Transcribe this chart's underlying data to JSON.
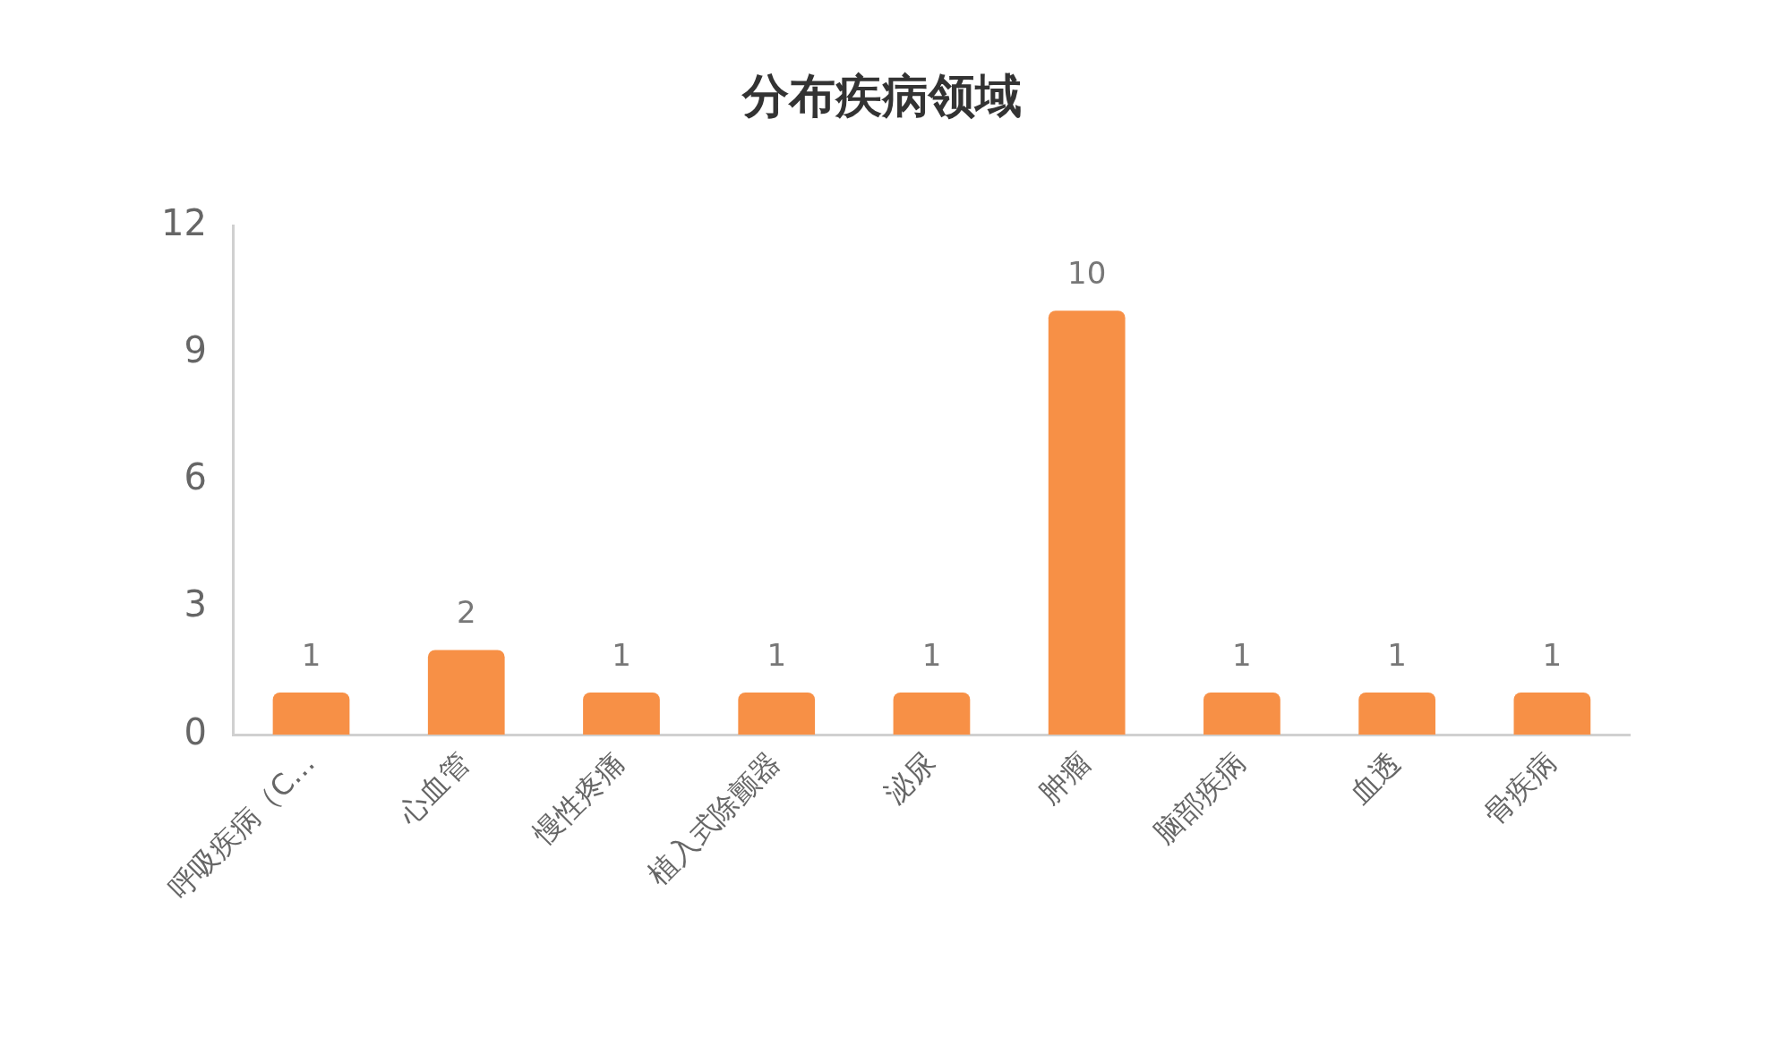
{
  "chart_data": {
    "type": "bar",
    "title": "分布疾病领域",
    "categories": [
      "呼吸疾病（C…",
      "心血管",
      "慢性疼痛",
      "植入式除颤器",
      "泌尿",
      "肿瘤",
      "脑部疾病",
      "血透",
      "骨疾病"
    ],
    "values": [
      1,
      2,
      1,
      1,
      1,
      10,
      1,
      1,
      1
    ],
    "color": "#f79046",
    "ylim": [
      0,
      12
    ],
    "yticks": [
      0,
      3,
      6,
      9,
      12
    ],
    "grid": false,
    "data_labels": true
  }
}
